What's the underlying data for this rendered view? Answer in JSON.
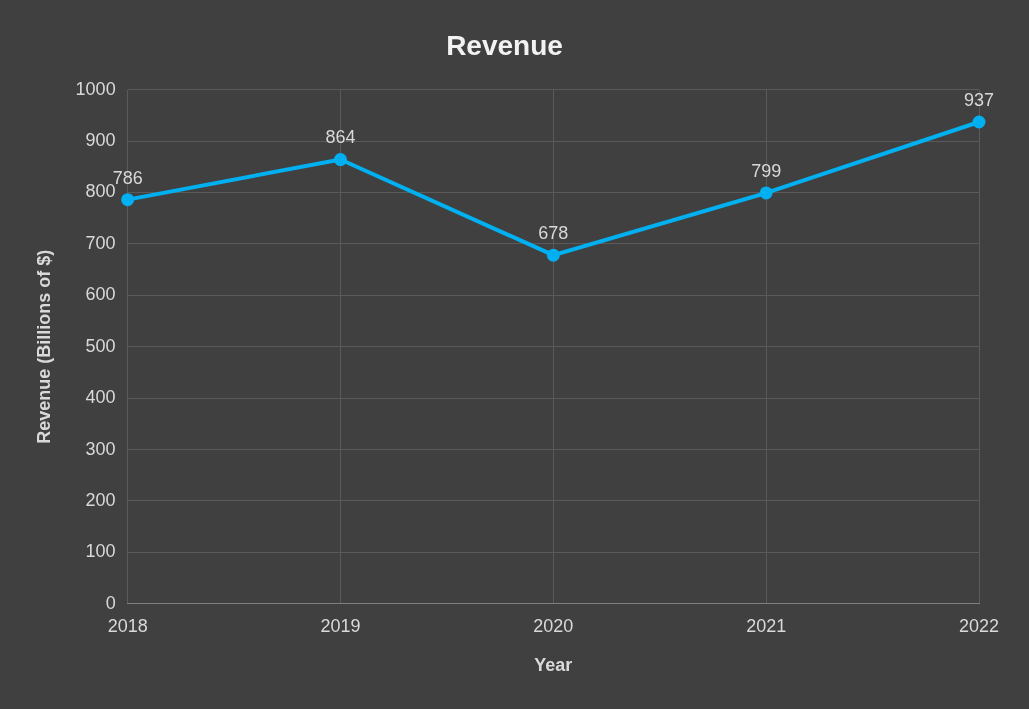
{
  "chart_data": {
    "type": "line",
    "title": "Revenue",
    "xlabel": "Year",
    "ylabel": "Revenue (Billions of $)",
    "categories": [
      "2018",
      "2019",
      "2020",
      "2021",
      "2022"
    ],
    "series": [
      {
        "color": "#00b0f0",
        "values": [
          786,
          864,
          678,
          799,
          937
        ]
      }
    ],
    "ylim": [
      0,
      1000
    ],
    "yticks": [
      0,
      100,
      200,
      300,
      400,
      500,
      600,
      700,
      800,
      900,
      1000
    ],
    "grid": true,
    "marker": "circle",
    "data_labels": true
  }
}
